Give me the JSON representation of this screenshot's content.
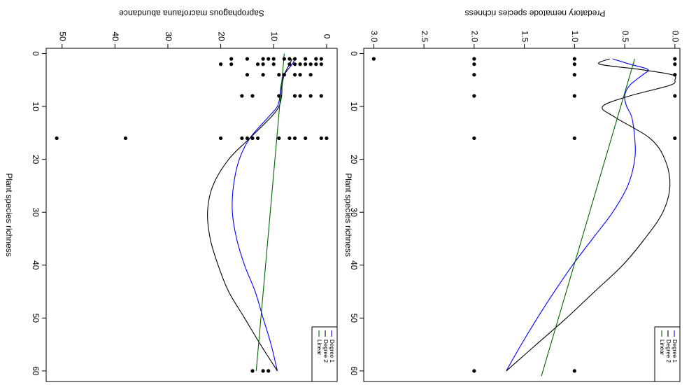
{
  "chart_data": [
    {
      "type": "scatter",
      "title": "Predatory nematode species richness",
      "xlabel": "Plant species richness",
      "ylabel": "",
      "xlim": [
        -1,
        62
      ],
      "ylim": [
        -0.05,
        3.1
      ],
      "xticks": [
        0,
        10,
        20,
        30,
        40,
        50,
        60
      ],
      "xtick_labels": [
        "0",
        "10",
        "20",
        "30",
        "40",
        "50",
        "60"
      ],
      "yticks": [
        0.0,
        0.5,
        1.0,
        1.5,
        2.0,
        2.5,
        3.0
      ],
      "ytick_labels": [
        "0.0",
        "0.5",
        "1.0",
        "1.5",
        "2.0",
        "2.5",
        "3.0"
      ],
      "points": [
        {
          "x": 1,
          "y": 0
        },
        {
          "x": 1,
          "y": 1
        },
        {
          "x": 1,
          "y": 2
        },
        {
          "x": 1,
          "y": 3
        },
        {
          "x": 2,
          "y": 0
        },
        {
          "x": 2,
          "y": 1
        },
        {
          "x": 2,
          "y": 2
        },
        {
          "x": 4,
          "y": 0
        },
        {
          "x": 4,
          "y": 1
        },
        {
          "x": 4,
          "y": 2
        },
        {
          "x": 8,
          "y": 0
        },
        {
          "x": 8,
          "y": 1
        },
        {
          "x": 8,
          "y": 2
        },
        {
          "x": 16,
          "y": 0
        },
        {
          "x": 16,
          "y": 1
        },
        {
          "x": 16,
          "y": 2
        },
        {
          "x": 60,
          "y": 1
        },
        {
          "x": 60,
          "y": 2
        }
      ],
      "series": [
        {
          "name": "Degree 1",
          "color": "#0000ff",
          "x": [
            1,
            2,
            3,
            4,
            6,
            8,
            10,
            12,
            16,
            20,
            25,
            30,
            35,
            40,
            45,
            50,
            55,
            60
          ],
          "values": [
            0.62,
            0.45,
            0.27,
            0.32,
            0.45,
            0.5,
            0.48,
            0.43,
            0.4,
            0.4,
            0.47,
            0.62,
            0.82,
            1.02,
            1.2,
            1.37,
            1.53,
            1.68
          ]
        },
        {
          "name": "Degree 2",
          "color": "#000000",
          "x": [
            1,
            2,
            3,
            4,
            5,
            6,
            8,
            10,
            12,
            16,
            20,
            25,
            30,
            35,
            40,
            45,
            50,
            55,
            60
          ],
          "values": [
            0.65,
            0.75,
            0.35,
            0.03,
            0.0,
            0.05,
            0.45,
            0.72,
            0.6,
            0.25,
            0.1,
            0.05,
            0.12,
            0.3,
            0.52,
            0.8,
            1.08,
            1.38,
            1.68
          ]
        },
        {
          "name": "Linear",
          "color": "#006400",
          "x": [
            1,
            61
          ],
          "values": [
            0.4,
            1.33
          ]
        }
      ],
      "legend": [
        "Degree 1",
        "Degree 2",
        "Linear"
      ],
      "legend_position": "bottom-right"
    },
    {
      "type": "scatter",
      "title": "Saprophagous macrofauna abundance",
      "xlabel": "Plant species richness",
      "ylabel": "",
      "xlim": [
        -1,
        62
      ],
      "ylim": [
        -2,
        53
      ],
      "xticks": [
        0,
        10,
        20,
        30,
        40,
        50,
        60
      ],
      "xtick_labels": [
        "0",
        "10",
        "20",
        "30",
        "40",
        "50",
        "60"
      ],
      "yticks": [
        0,
        10,
        20,
        30,
        40,
        50
      ],
      "ytick_labels": [
        "0",
        "10",
        "20",
        "30",
        "40",
        "50"
      ],
      "points": [
        {
          "x": 1,
          "y": 1
        },
        {
          "x": 1,
          "y": 2
        },
        {
          "x": 1,
          "y": 4
        },
        {
          "x": 1,
          "y": 6
        },
        {
          "x": 1,
          "y": 7
        },
        {
          "x": 1,
          "y": 8
        },
        {
          "x": 1,
          "y": 10
        },
        {
          "x": 1,
          "y": 11
        },
        {
          "x": 1,
          "y": 12
        },
        {
          "x": 1,
          "y": 15
        },
        {
          "x": 1,
          "y": 18
        },
        {
          "x": 2,
          "y": 1
        },
        {
          "x": 2,
          "y": 2
        },
        {
          "x": 2,
          "y": 3
        },
        {
          "x": 2,
          "y": 4
        },
        {
          "x": 2,
          "y": 5
        },
        {
          "x": 2,
          "y": 6
        },
        {
          "x": 2,
          "y": 7
        },
        {
          "x": 2,
          "y": 10
        },
        {
          "x": 2,
          "y": 12
        },
        {
          "x": 2,
          "y": 13
        },
        {
          "x": 2,
          "y": 18
        },
        {
          "x": 2,
          "y": 20
        },
        {
          "x": 4,
          "y": 3
        },
        {
          "x": 4,
          "y": 5
        },
        {
          "x": 4,
          "y": 6
        },
        {
          "x": 4,
          "y": 8
        },
        {
          "x": 4,
          "y": 9
        },
        {
          "x": 4,
          "y": 12
        },
        {
          "x": 4,
          "y": 15
        },
        {
          "x": 8,
          "y": 1
        },
        {
          "x": 8,
          "y": 3
        },
        {
          "x": 8,
          "y": 5
        },
        {
          "x": 8,
          "y": 6
        },
        {
          "x": 8,
          "y": 9
        },
        {
          "x": 8,
          "y": 14
        },
        {
          "x": 8,
          "y": 16
        },
        {
          "x": 16,
          "y": 0
        },
        {
          "x": 16,
          "y": 1
        },
        {
          "x": 16,
          "y": 4
        },
        {
          "x": 16,
          "y": 6
        },
        {
          "x": 16,
          "y": 7
        },
        {
          "x": 16,
          "y": 9
        },
        {
          "x": 16,
          "y": 13
        },
        {
          "x": 16,
          "y": 14
        },
        {
          "x": 16,
          "y": 15
        },
        {
          "x": 16,
          "y": 16
        },
        {
          "x": 16,
          "y": 20
        },
        {
          "x": 16,
          "y": 38
        },
        {
          "x": 16,
          "y": 51
        },
        {
          "x": 60,
          "y": 1
        },
        {
          "x": 60,
          "y": 11
        },
        {
          "x": 60,
          "y": 12
        },
        {
          "x": 60,
          "y": 14
        }
      ],
      "series": [
        {
          "name": "Degree 1",
          "color": "#0000ff",
          "x": [
            1,
            2,
            4,
            6,
            8,
            10,
            12,
            16,
            20,
            25,
            30,
            35,
            40,
            45,
            50,
            55,
            60
          ],
          "values": [
            6.0,
            6.5,
            8.0,
            8.6,
            8.8,
            9.3,
            11.0,
            14.5,
            16.5,
            17.6,
            17.8,
            17.0,
            15.5,
            13.5,
            12.0,
            10.5,
            9.3
          ]
        },
        {
          "name": "Degree 2",
          "color": "#000000",
          "x": [
            1,
            2,
            4,
            6,
            8,
            10,
            12,
            16,
            20,
            25,
            30,
            35,
            40,
            45,
            50,
            55,
            60
          ],
          "values": [
            6.5,
            7.0,
            8.0,
            8.4,
            8.5,
            9.0,
            10.5,
            14.5,
            18.5,
            21.5,
            22.5,
            22.0,
            20.5,
            18.5,
            15.5,
            12.5,
            9.3
          ]
        },
        {
          "name": "Linear",
          "color": "#006400",
          "x": [
            0,
            60
          ],
          "values": [
            8.0,
            13.3
          ]
        }
      ],
      "legend": [
        "Degree 1",
        "Degree 2",
        "Linear"
      ],
      "legend_position": "bottom-right"
    }
  ]
}
